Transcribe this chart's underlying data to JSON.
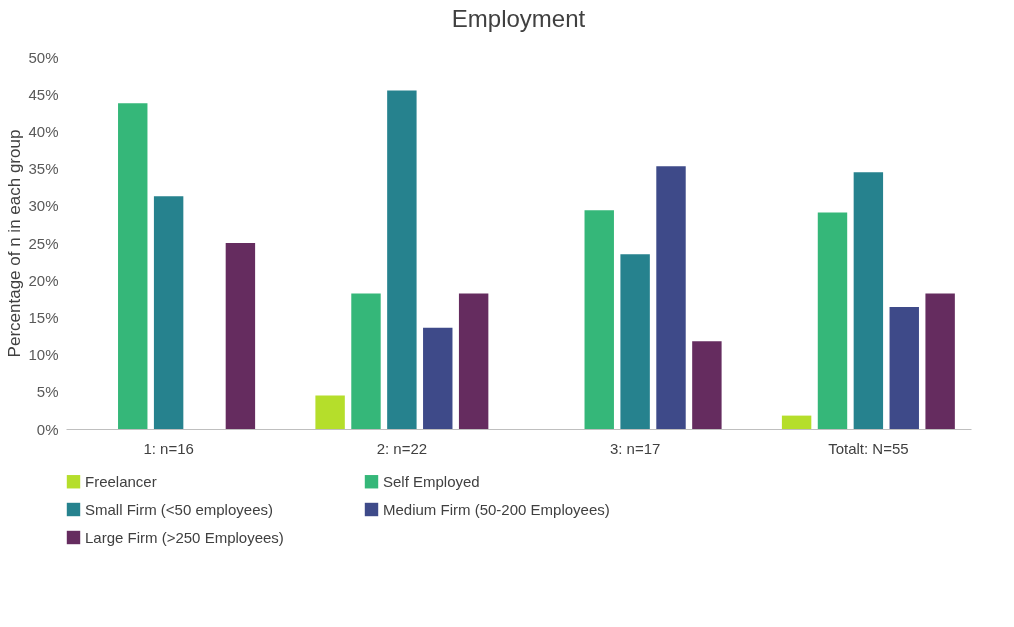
{
  "chart_data": {
    "type": "bar",
    "title": "Employment",
    "ylabel": "Percentage of n in each group",
    "categories": [
      "1: n=16",
      "2: n=22",
      "3: n=17",
      "Totalt: N=55"
    ],
    "series": [
      {
        "name": "Freelancer",
        "color": "#b5de2b",
        "values": [
          0,
          4.5,
          0,
          1.8
        ]
      },
      {
        "name": "Self Employed",
        "color": "#35b779",
        "values": [
          43.8,
          18.2,
          29.4,
          29.1
        ]
      },
      {
        "name": "Small Firm (<50 employees)",
        "color": "#26828e",
        "values": [
          31.3,
          45.5,
          23.5,
          34.5
        ]
      },
      {
        "name": "Medium Firm (50-200 Employees)",
        "color": "#3e4a89",
        "values": [
          0,
          13.6,
          35.3,
          16.4
        ]
      },
      {
        "name": "Large Firm (>250 Employees)",
        "color": "#652c5f",
        "values": [
          25,
          18.2,
          11.8,
          18.2
        ]
      }
    ],
    "ylim": [
      0,
      50
    ],
    "yticks": [
      {
        "value": 0,
        "label": "0%"
      },
      {
        "value": 5,
        "label": "5%"
      },
      {
        "value": 10,
        "label": "10%"
      },
      {
        "value": 15,
        "label": "15%"
      },
      {
        "value": 20,
        "label": "20%"
      },
      {
        "value": 25,
        "label": "25%"
      },
      {
        "value": 30,
        "label": "30%"
      },
      {
        "value": 35,
        "label": "35%"
      },
      {
        "value": 40,
        "label": "40%"
      },
      {
        "value": 45,
        "label": "45%"
      },
      {
        "value": 50,
        "label": "50%"
      }
    ],
    "grid": false,
    "legend": "bottom"
  }
}
